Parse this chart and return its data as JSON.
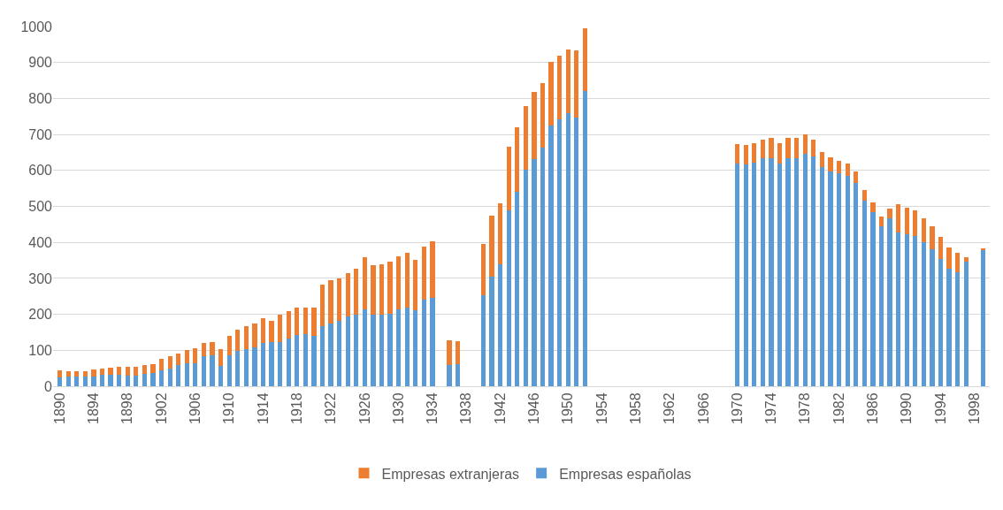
{
  "chart_data": {
    "type": "bar",
    "stacked": true,
    "categories": [
      "1890",
      null,
      null,
      null,
      "1894",
      null,
      null,
      null,
      "1898",
      null,
      null,
      null,
      "1902",
      null,
      null,
      null,
      "1906",
      null,
      null,
      null,
      "1910",
      null,
      null,
      null,
      "1914",
      null,
      null,
      null,
      "1918",
      null,
      null,
      null,
      "1922",
      null,
      null,
      null,
      "1926",
      null,
      null,
      null,
      "1930",
      null,
      null,
      null,
      "1934",
      null,
      null,
      null,
      "1938",
      null,
      null,
      null,
      "1942",
      null,
      null,
      null,
      "1946",
      null,
      null,
      null,
      "1950",
      null,
      null,
      null,
      "1954",
      null,
      null,
      null,
      "1958",
      null,
      null,
      null,
      "1962",
      null,
      null,
      null,
      "1966",
      null,
      null,
      null,
      "1970",
      null,
      null,
      null,
      "1974",
      null,
      null,
      null,
      "1978",
      null,
      null,
      null,
      "1982",
      null,
      null,
      null,
      "1986",
      null,
      null,
      null,
      "1990",
      null,
      null,
      null,
      "1994",
      null,
      null,
      null,
      "1998",
      null
    ],
    "series": [
      {
        "name": "Empresas españolas",
        "color": "#5b9bd5",
        "values": [
          24,
          26,
          27,
          27,
          28,
          31,
          31,
          31,
          29,
          29,
          34,
          37,
          44,
          49,
          59,
          65,
          65,
          84,
          87,
          57,
          86,
          98,
          104,
          108,
          120,
          124,
          122,
          132,
          142,
          144,
          141,
          168,
          175,
          182,
          193,
          198,
          213,
          198,
          198,
          202,
          213,
          218,
          211,
          242,
          246,
          null,
          60,
          61,
          null,
          null,
          253,
          305,
          340,
          489,
          541,
          603,
          632,
          664,
          724,
          741,
          760,
          746,
          821,
          null,
          null,
          null,
          null,
          null,
          null,
          null,
          null,
          null,
          null,
          null,
          null,
          null,
          null,
          null,
          null,
          null,
          618,
          617,
          622,
          634,
          635,
          620,
          635,
          635,
          647,
          639,
          610,
          598,
          593,
          584,
          565,
          515,
          483,
          445,
          466,
          428,
          422,
          418,
          400,
          380,
          353,
          326,
          318,
          347,
          null,
          379
        ]
      },
      {
        "name": "Empresas extranjeras",
        "color": "#ed7d31",
        "values": [
          21,
          16,
          16,
          16,
          18,
          19,
          21,
          23,
          24,
          24,
          25,
          25,
          33,
          34,
          33,
          35,
          41,
          37,
          36,
          45,
          54,
          60,
          63,
          67,
          70,
          59,
          76,
          76,
          76,
          74,
          77,
          114,
          120,
          117,
          122,
          129,
          145,
          139,
          142,
          144,
          147,
          154,
          140,
          146,
          156,
          null,
          69,
          65,
          null,
          null,
          143,
          170,
          169,
          176,
          178,
          176,
          185,
          178,
          177,
          178,
          177,
          188,
          174,
          null,
          null,
          null,
          null,
          null,
          null,
          null,
          null,
          null,
          null,
          null,
          null,
          null,
          null,
          null,
          null,
          null,
          55,
          54,
          53,
          52,
          55,
          55,
          55,
          55,
          53,
          46,
          41,
          39,
          34,
          35,
          33,
          31,
          28,
          27,
          28,
          79,
          75,
          72,
          66,
          64,
          63,
          60,
          53,
          12,
          null,
          3
        ]
      }
    ],
    "ylim": [
      0,
      1000
    ],
    "yticks": [
      0,
      100,
      200,
      300,
      400,
      500,
      600,
      700,
      800,
      900,
      1000
    ],
    "grid": "y",
    "legend": "bottom"
  }
}
